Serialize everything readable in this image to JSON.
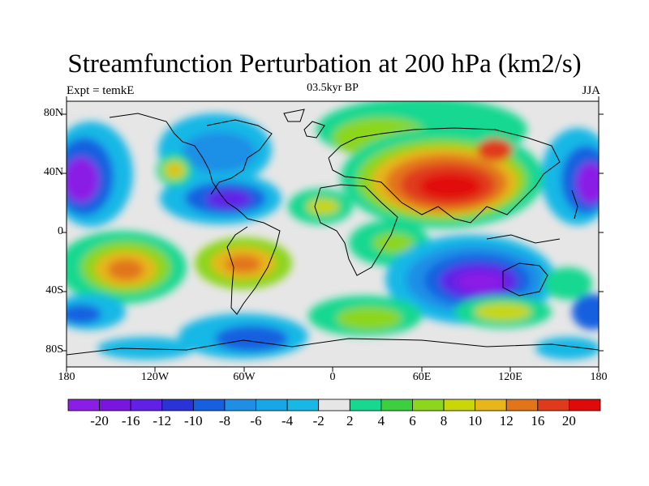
{
  "title": "Streamfunction Perturbation at 200 hPa (km2/s)",
  "left_string": "Expt = temkE",
  "center_string": "03.5kyr BP",
  "right_string": "JJA",
  "map": {
    "projection": "cylindrical equidistant",
    "lon_range": [
      -180,
      180
    ],
    "lat_range": [
      -90,
      90
    ],
    "y_ticks": [
      "80N",
      "40N",
      "0",
      "40S",
      "80S"
    ],
    "x_ticks": [
      "180",
      "120W",
      "60W",
      "0",
      "60E",
      "120E",
      "180"
    ],
    "coastlines": true
  },
  "colorbar": {
    "labels": [
      "-20",
      "-16",
      "-12",
      "-10",
      "-8",
      "-6",
      "-4",
      "-2",
      "2",
      "4",
      "6",
      "8",
      "10",
      "12",
      "16",
      "20"
    ],
    "colors": [
      "#8b1ee6",
      "#7a15e0",
      "#6020e6",
      "#2a33d8",
      "#1660e0",
      "#1f8fe6",
      "#18a6e6",
      "#18b8e6",
      "#e6e6e6",
      "#18d890",
      "#3cd040",
      "#8cd61e",
      "#c8d60a",
      "#e6b61a",
      "#e2741a",
      "#e03a1c",
      "#e10a0a"
    ]
  }
}
